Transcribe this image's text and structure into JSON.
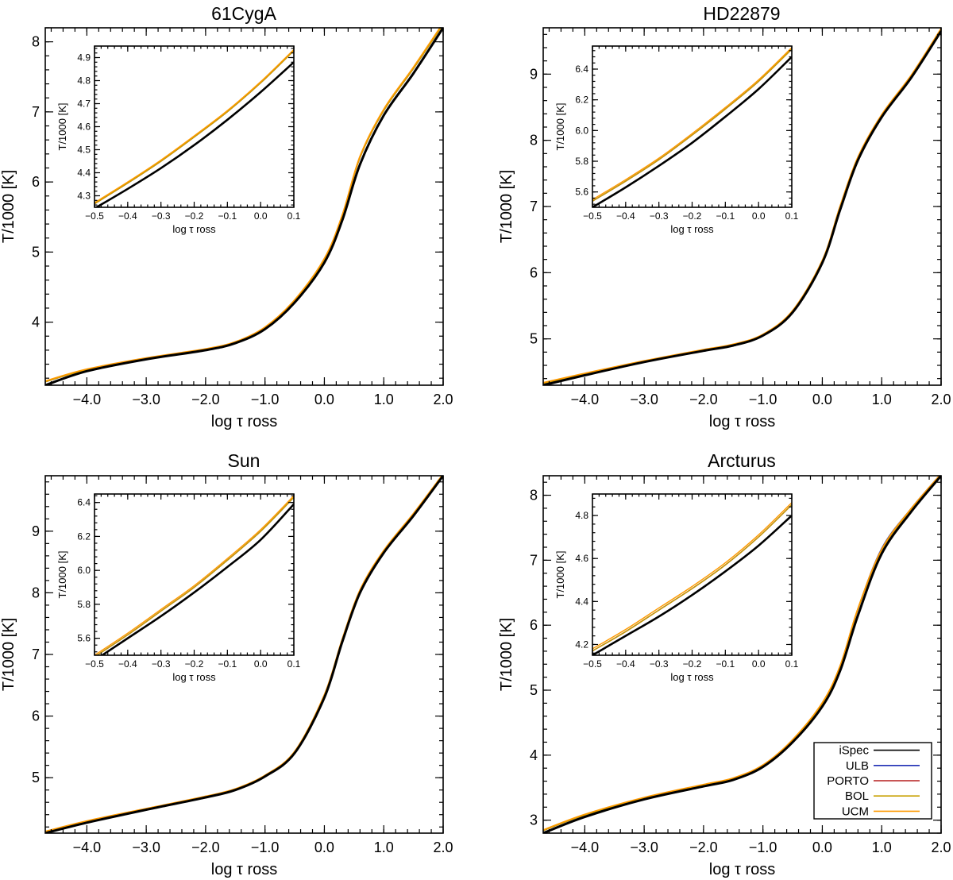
{
  "chart_data": [
    {
      "type": "line",
      "title": "61CygA",
      "xlabel": "log τ  ross",
      "ylabel": "T/1000 [K]",
      "xlim": [
        -4.7,
        2.0
      ],
      "ylim": [
        3.1,
        8.2
      ],
      "xticks": [
        -4.0,
        -3.0,
        -2.0,
        -1.0,
        0.0,
        1.0,
        2.0
      ],
      "xtick_labels": [
        "−4.0",
        "−3.0",
        "−2.0",
        "−1.0",
        "0.0",
        "1.0",
        "2.0"
      ],
      "yticks": [
        4,
        5,
        6,
        7,
        8
      ],
      "ytick_labels": [
        "4",
        "5",
        "6",
        "7",
        "8"
      ],
      "x": [
        -4.7,
        -4.0,
        -3.0,
        -2.0,
        -1.5,
        -1.0,
        -0.5,
        0.0,
        0.3,
        0.6,
        1.0,
        1.5,
        2.0
      ],
      "series": [
        {
          "name": "iSpec",
          "color": "#000000",
          "y": [
            3.1,
            3.3,
            3.47,
            3.6,
            3.7,
            3.9,
            4.28,
            4.85,
            5.45,
            6.25,
            6.95,
            7.55,
            8.2
          ]
        },
        {
          "name": "ULB",
          "color": "#1f2fb5",
          "y": [
            3.15,
            3.32,
            3.48,
            3.61,
            3.71,
            3.92,
            4.31,
            4.9,
            5.52,
            6.35,
            7.02,
            7.62,
            8.25
          ]
        },
        {
          "name": "PORTO",
          "color": "#b51f1f",
          "y": [
            3.15,
            3.32,
            3.48,
            3.61,
            3.71,
            3.92,
            4.31,
            4.9,
            5.52,
            6.35,
            7.02,
            7.62,
            8.25
          ]
        },
        {
          "name": "BOL",
          "color": "#c8a000",
          "y": [
            3.15,
            3.32,
            3.48,
            3.61,
            3.71,
            3.92,
            4.31,
            4.9,
            5.52,
            6.35,
            7.02,
            7.62,
            8.25
          ]
        },
        {
          "name": "UCM",
          "color": "#ff9a00",
          "y": [
            3.16,
            3.33,
            3.49,
            3.62,
            3.72,
            3.93,
            4.32,
            4.91,
            5.53,
            6.37,
            7.04,
            7.64,
            8.27
          ]
        }
      ],
      "inset": {
        "xlabel": "log τ  ross",
        "ylabel": "T/1000 [K]",
        "xlim": [
          -0.5,
          0.1
        ],
        "ylim": [
          4.25,
          4.95
        ],
        "xticks": [
          -0.5,
          -0.4,
          -0.3,
          -0.2,
          -0.1,
          0.0,
          0.1
        ],
        "xtick_labels": [
          "−0.5",
          "−0.4",
          "−0.3",
          "−0.2",
          "−0.1",
          "0.0",
          "0.1"
        ],
        "yticks": [
          4.3,
          4.4,
          4.5,
          4.6,
          4.7,
          4.8,
          4.9
        ],
        "ytick_labels": [
          "4.3",
          "4.4",
          "4.5",
          "4.6",
          "4.7",
          "4.8",
          "4.9"
        ],
        "x": [
          -0.5,
          -0.4,
          -0.3,
          -0.2,
          -0.1,
          0.0,
          0.1
        ],
        "series": [
          {
            "name": "iSpec",
            "color": "#000000",
            "y": [
              4.245,
              4.33,
              4.42,
              4.52,
              4.63,
              4.75,
              4.88
            ]
          },
          {
            "name": "ULB",
            "color": "#1f2fb5",
            "y": [
              4.265,
              4.355,
              4.45,
              4.555,
              4.665,
              4.79,
              4.93
            ]
          },
          {
            "name": "PORTO",
            "color": "#b51f1f",
            "y": [
              4.265,
              4.355,
              4.45,
              4.555,
              4.665,
              4.79,
              4.93
            ]
          },
          {
            "name": "BOL",
            "color": "#c8a000",
            "y": [
              4.265,
              4.355,
              4.45,
              4.555,
              4.665,
              4.79,
              4.93
            ]
          },
          {
            "name": "UCM",
            "color": "#ff9a00",
            "y": [
              4.27,
              4.36,
              4.455,
              4.56,
              4.67,
              4.795,
              4.935
            ]
          }
        ]
      }
    },
    {
      "type": "line",
      "title": "HD22879",
      "xlabel": "log τ  ross",
      "ylabel": "T/1000 [K]",
      "xlim": [
        -4.7,
        2.0
      ],
      "ylim": [
        4.3,
        9.7
      ],
      "xticks": [
        -4.0,
        -3.0,
        -2.0,
        -1.0,
        0.0,
        1.0,
        2.0
      ],
      "xtick_labels": [
        "−4.0",
        "−3.0",
        "−2.0",
        "−1.0",
        "0.0",
        "1.0",
        "2.0"
      ],
      "yticks": [
        5,
        6,
        7,
        8,
        9
      ],
      "ytick_labels": [
        "5",
        "6",
        "7",
        "8",
        "9"
      ],
      "x": [
        -4.7,
        -4.0,
        -3.0,
        -2.0,
        -1.5,
        -1.0,
        -0.5,
        0.0,
        0.3,
        0.6,
        1.0,
        1.5,
        2.0
      ],
      "series": [
        {
          "name": "iSpec",
          "color": "#000000",
          "y": [
            4.3,
            4.45,
            4.65,
            4.82,
            4.9,
            5.05,
            5.4,
            6.15,
            6.95,
            7.7,
            8.35,
            8.95,
            9.65
          ]
        },
        {
          "name": "ULB",
          "color": "#1f2fb5",
          "y": [
            4.33,
            4.47,
            4.66,
            4.83,
            4.91,
            5.06,
            5.42,
            6.18,
            7.0,
            7.74,
            8.38,
            8.98,
            9.68
          ]
        },
        {
          "name": "PORTO",
          "color": "#b51f1f",
          "y": [
            4.33,
            4.47,
            4.66,
            4.83,
            4.91,
            5.06,
            5.42,
            6.18,
            7.0,
            7.74,
            8.38,
            8.98,
            9.68
          ]
        },
        {
          "name": "BOL",
          "color": "#c8a000",
          "y": [
            4.33,
            4.47,
            4.66,
            4.83,
            4.91,
            5.06,
            5.42,
            6.18,
            7.0,
            7.74,
            8.38,
            8.98,
            9.68
          ]
        },
        {
          "name": "UCM",
          "color": "#ff9a00",
          "y": [
            4.34,
            4.48,
            4.67,
            4.84,
            4.92,
            5.07,
            5.43,
            6.19,
            7.01,
            7.75,
            8.39,
            8.99,
            9.69
          ]
        }
      ],
      "inset": {
        "xlabel": "log τ  ross",
        "ylabel": "T/1000 [K]",
        "xlim": [
          -0.5,
          0.1
        ],
        "ylim": [
          5.5,
          6.55
        ],
        "xticks": [
          -0.5,
          -0.4,
          -0.3,
          -0.2,
          -0.1,
          0.0,
          0.1
        ],
        "xtick_labels": [
          "−0.5",
          "−0.4",
          "−0.3",
          "−0.2",
          "−0.1",
          "0.0",
          "0.1"
        ],
        "yticks": [
          5.6,
          5.8,
          6.0,
          6.2,
          6.4
        ],
        "ytick_labels": [
          "5.6",
          "5.8",
          "6.0",
          "6.2",
          "6.4"
        ],
        "x": [
          -0.5,
          -0.4,
          -0.3,
          -0.2,
          -0.1,
          0.0,
          0.1
        ],
        "series": [
          {
            "name": "iSpec",
            "color": "#000000",
            "y": [
              5.5,
              5.63,
              5.77,
              5.92,
              6.09,
              6.27,
              6.48
            ]
          },
          {
            "name": "ULB",
            "color": "#1f2fb5",
            "y": [
              5.54,
              5.67,
              5.81,
              5.97,
              6.14,
              6.32,
              6.53
            ]
          },
          {
            "name": "PORTO",
            "color": "#b51f1f",
            "y": [
              5.54,
              5.67,
              5.81,
              5.97,
              6.14,
              6.32,
              6.53
            ]
          },
          {
            "name": "BOL",
            "color": "#c8a000",
            "y": [
              5.54,
              5.67,
              5.81,
              5.97,
              6.14,
              6.32,
              6.53
            ]
          },
          {
            "name": "UCM",
            "color": "#ff9a00",
            "y": [
              5.55,
              5.68,
              5.82,
              5.98,
              6.15,
              6.33,
              6.54
            ]
          }
        ]
      }
    },
    {
      "type": "line",
      "title": "Sun",
      "xlabel": "log τ  ross",
      "ylabel": "T/1000 [K]",
      "xlim": [
        -4.7,
        2.0
      ],
      "ylim": [
        4.1,
        9.9
      ],
      "xticks": [
        -4.0,
        -3.0,
        -2.0,
        -1.0,
        0.0,
        1.0,
        2.0
      ],
      "xtick_labels": [
        "−4.0",
        "−3.0",
        "−2.0",
        "−1.0",
        "0.0",
        "1.0",
        "2.0"
      ],
      "yticks": [
        5,
        6,
        7,
        8,
        9
      ],
      "ytick_labels": [
        "5",
        "6",
        "7",
        "8",
        "9"
      ],
      "x": [
        -4.7,
        -4.0,
        -3.0,
        -2.0,
        -1.5,
        -1.0,
        -0.5,
        0.0,
        0.3,
        0.6,
        1.0,
        1.5,
        2.0
      ],
      "series": [
        {
          "name": "iSpec",
          "color": "#000000",
          "y": [
            4.1,
            4.27,
            4.48,
            4.68,
            4.8,
            5.02,
            5.4,
            6.3,
            7.2,
            8.0,
            8.65,
            9.25,
            9.9
          ]
        },
        {
          "name": "ULB",
          "color": "#1f2fb5",
          "y": [
            4.12,
            4.29,
            4.49,
            4.69,
            4.81,
            5.03,
            5.42,
            6.34,
            7.24,
            8.04,
            8.68,
            9.28,
            9.92
          ]
        },
        {
          "name": "PORTO",
          "color": "#b51f1f",
          "y": [
            4.12,
            4.29,
            4.49,
            4.69,
            4.81,
            5.03,
            5.42,
            6.34,
            7.24,
            8.04,
            8.68,
            9.28,
            9.92
          ]
        },
        {
          "name": "BOL",
          "color": "#c8a000",
          "y": [
            4.12,
            4.29,
            4.49,
            4.69,
            4.81,
            5.03,
            5.42,
            6.34,
            7.24,
            8.04,
            8.68,
            9.28,
            9.92
          ]
        },
        {
          "name": "UCM",
          "color": "#ff9a00",
          "y": [
            4.13,
            4.3,
            4.5,
            4.7,
            4.82,
            5.04,
            5.43,
            6.35,
            7.25,
            8.05,
            8.69,
            9.29,
            9.93
          ]
        }
      ],
      "inset": {
        "xlabel": "log τ  ross",
        "ylabel": "T/1000 [K]",
        "xlim": [
          -0.5,
          0.1
        ],
        "ylim": [
          5.5,
          6.45
        ],
        "xticks": [
          -0.5,
          -0.4,
          -0.3,
          -0.2,
          -0.1,
          0.0,
          0.1
        ],
        "xtick_labels": [
          "−0.5",
          "−0.4",
          "−0.3",
          "−0.2",
          "−0.1",
          "0.0",
          "0.1"
        ],
        "yticks": [
          5.6,
          5.8,
          6.0,
          6.2,
          6.4
        ],
        "ytick_labels": [
          "5.6",
          "5.8",
          "6.0",
          "6.2",
          "6.4"
        ],
        "x": [
          -0.5,
          -0.4,
          -0.3,
          -0.2,
          -0.1,
          0.0,
          0.1
        ],
        "series": [
          {
            "name": "iSpec",
            "color": "#000000",
            "y": [
              5.47,
              5.6,
              5.73,
              5.87,
              6.02,
              6.18,
              6.39
            ]
          },
          {
            "name": "ULB",
            "color": "#1f2fb5",
            "y": [
              5.49,
              5.62,
              5.76,
              5.9,
              6.06,
              6.23,
              6.43
            ]
          },
          {
            "name": "PORTO",
            "color": "#b51f1f",
            "y": [
              5.49,
              5.62,
              5.76,
              5.9,
              6.06,
              6.23,
              6.43
            ]
          },
          {
            "name": "BOL",
            "color": "#c8a000",
            "y": [
              5.49,
              5.62,
              5.76,
              5.9,
              6.06,
              6.23,
              6.43
            ]
          },
          {
            "name": "UCM",
            "color": "#ff9a00",
            "y": [
              5.5,
              5.63,
              5.77,
              5.91,
              6.07,
              6.24,
              6.44
            ]
          }
        ]
      }
    },
    {
      "type": "line",
      "title": "Arcturus",
      "xlabel": "log τ  ross",
      "ylabel": "T/1000 [K]",
      "xlim": [
        -4.7,
        2.0
      ],
      "ylim": [
        2.8,
        8.3
      ],
      "xticks": [
        -4.0,
        -3.0,
        -2.0,
        -1.0,
        0.0,
        1.0,
        2.0
      ],
      "xtick_labels": [
        "−4.0",
        "−3.0",
        "−2.0",
        "−1.0",
        "0.0",
        "1.0",
        "2.0"
      ],
      "yticks": [
        3,
        4,
        5,
        6,
        7,
        8
      ],
      "ytick_labels": [
        "3",
        "4",
        "5",
        "6",
        "7",
        "8"
      ],
      "x": [
        -4.7,
        -4.0,
        -3.0,
        -2.0,
        -1.5,
        -1.0,
        -0.5,
        0.0,
        0.3,
        0.6,
        1.0,
        1.5,
        2.0
      ],
      "series": [
        {
          "name": "iSpec",
          "color": "#000000",
          "y": [
            2.8,
            3.05,
            3.32,
            3.52,
            3.62,
            3.82,
            4.2,
            4.75,
            5.3,
            6.15,
            7.1,
            7.75,
            8.3
          ]
        },
        {
          "name": "ULB",
          "color": "#1f2fb5",
          "y": [
            2.84,
            3.08,
            3.34,
            3.54,
            3.64,
            3.84,
            4.23,
            4.8,
            5.37,
            6.25,
            7.18,
            7.8,
            8.33
          ]
        },
        {
          "name": "PORTO",
          "color": "#b51f1f",
          "y": [
            2.84,
            3.08,
            3.34,
            3.54,
            3.64,
            3.84,
            4.23,
            4.8,
            5.37,
            6.25,
            7.16,
            7.79,
            8.32
          ]
        },
        {
          "name": "BOL",
          "color": "#c8a000",
          "y": [
            2.84,
            3.08,
            3.34,
            3.54,
            3.64,
            3.84,
            4.23,
            4.8,
            5.37,
            6.25,
            7.16,
            7.79,
            8.32
          ]
        },
        {
          "name": "UCM",
          "color": "#ff9a00",
          "y": [
            2.85,
            3.09,
            3.35,
            3.55,
            3.65,
            3.85,
            4.24,
            4.81,
            5.38,
            6.26,
            7.17,
            7.8,
            8.33
          ]
        }
      ],
      "inset": {
        "xlabel": "log τ  ross",
        "ylabel": "T/1000 [K]",
        "xlim": [
          -0.5,
          0.1
        ],
        "ylim": [
          4.15,
          4.9
        ],
        "xticks": [
          -0.5,
          -0.4,
          -0.3,
          -0.2,
          -0.1,
          0.0,
          0.1
        ],
        "xtick_labels": [
          "−0.5",
          "−0.4",
          "−0.3",
          "−0.2",
          "−0.1",
          "0.0",
          "0.1"
        ],
        "yticks": [
          4.2,
          4.4,
          4.6,
          4.8
        ],
        "ytick_labels": [
          "4.2",
          "4.4",
          "4.6",
          "4.8"
        ],
        "x": [
          -0.5,
          -0.4,
          -0.3,
          -0.2,
          -0.1,
          0.0,
          0.1
        ],
        "series": [
          {
            "name": "iSpec",
            "color": "#000000",
            "y": [
              4.15,
              4.24,
              4.33,
              4.43,
              4.54,
              4.66,
              4.8
            ]
          },
          {
            "name": "ULB",
            "color": "#1f2fb5",
            "y": [
              4.17,
              4.26,
              4.36,
              4.46,
              4.57,
              4.7,
              4.85
            ]
          },
          {
            "name": "PORTO",
            "color": "#b51f1f",
            "y": [
              4.17,
              4.26,
              4.36,
              4.46,
              4.57,
              4.7,
              4.85
            ]
          },
          {
            "name": "BOL",
            "color": "#c8a000",
            "y": [
              4.17,
              4.26,
              4.36,
              4.46,
              4.57,
              4.7,
              4.85
            ]
          },
          {
            "name": "UCM",
            "color": "#ff9a00",
            "y": [
              4.18,
              4.27,
              4.37,
              4.47,
              4.58,
              4.71,
              4.86
            ]
          }
        ]
      },
      "legend": {
        "placement": "bottom-right",
        "entries": [
          {
            "label": "iSpec",
            "color": "#000000"
          },
          {
            "label": "ULB",
            "color": "#1f2fb5"
          },
          {
            "label": "PORTO",
            "color": "#b51f1f"
          },
          {
            "label": "BOL",
            "color": "#c8a000"
          },
          {
            "label": "UCM",
            "color": "#ff9a00"
          }
        ]
      }
    }
  ]
}
